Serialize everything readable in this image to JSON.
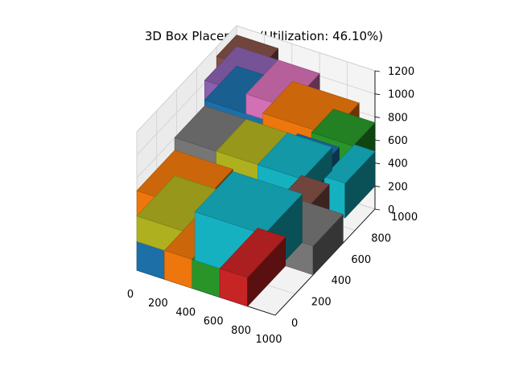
{
  "chart_data": {
    "type": "3d-bar",
    "title": "3D Box Placement (Utilization: 46.10%)",
    "xlabel": "",
    "ylabel": "",
    "zlabel": "",
    "xlim": [
      0,
      1000
    ],
    "ylim": [
      0,
      1000
    ],
    "zlim": [
      0,
      1200
    ],
    "x_ticks": [
      "0",
      "200",
      "400",
      "600",
      "800",
      "1000"
    ],
    "y_ticks": [
      "0",
      "200",
      "400",
      "600",
      "800",
      "1000"
    ],
    "z_ticks": [
      "0",
      "200",
      "400",
      "600",
      "800",
      "1000",
      "1200"
    ],
    "grid": true,
    "boxes": [
      {
        "x": 0,
        "y": 0,
        "z": 0,
        "dx": 200,
        "dy": 380,
        "dz": 250,
        "color": "#1f77b4"
      },
      {
        "x": 200,
        "y": 0,
        "z": 0,
        "dx": 200,
        "dy": 380,
        "dz": 250,
        "color": "#ff7f0e"
      },
      {
        "x": 400,
        "y": 0,
        "z": 0,
        "dx": 200,
        "dy": 380,
        "dz": 250,
        "color": "#2ca02c"
      },
      {
        "x": 600,
        "y": 0,
        "z": 0,
        "dx": 200,
        "dy": 380,
        "dz": 250,
        "color": "#d62728"
      },
      {
        "x": 0,
        "y": 0,
        "z": 250,
        "dx": 420,
        "dy": 380,
        "dz": 220,
        "color": "#bcbd22"
      },
      {
        "x": 0,
        "y": 0,
        "z": 470,
        "dx": 420,
        "dy": 380,
        "dz": 220,
        "color": "#ff7f0e"
      },
      {
        "x": 420,
        "y": 0,
        "z": 250,
        "dx": 500,
        "dy": 380,
        "dz": 420,
        "color": "#17becf"
      },
      {
        "x": 0,
        "y": 380,
        "z": 600,
        "dx": 300,
        "dy": 300,
        "dz": 200,
        "color": "#7f7f7f"
      },
      {
        "x": 300,
        "y": 380,
        "z": 600,
        "dx": 300,
        "dy": 300,
        "dz": 200,
        "color": "#bcbd22"
      },
      {
        "x": 600,
        "y": 380,
        "z": 600,
        "dx": 320,
        "dy": 300,
        "dz": 200,
        "color": "#17becf"
      },
      {
        "x": 0,
        "y": 680,
        "z": 650,
        "dx": 420,
        "dy": 320,
        "dz": 200,
        "color": "#1f77b4"
      },
      {
        "x": 0,
        "y": 680,
        "z": 850,
        "dx": 300,
        "dy": 320,
        "dz": 170,
        "color": "#9467bd"
      },
      {
        "x": 300,
        "y": 680,
        "z": 850,
        "dx": 300,
        "dy": 320,
        "dz": 170,
        "color": "#e377c2"
      },
      {
        "x": 0,
        "y": 800,
        "z": 1020,
        "dx": 300,
        "dy": 200,
        "dz": 100,
        "color": "#8c564b"
      },
      {
        "x": 420,
        "y": 680,
        "z": 700,
        "dx": 480,
        "dy": 300,
        "dz": 200,
        "color": "#ff7f0e"
      },
      {
        "x": 600,
        "y": 560,
        "z": 450,
        "dx": 300,
        "dy": 220,
        "dz": 250,
        "color": "#1f77b4"
      },
      {
        "x": 850,
        "y": 700,
        "z": 200,
        "dx": 150,
        "dy": 300,
        "dz": 300,
        "color": "#17becf"
      },
      {
        "x": 700,
        "y": 780,
        "z": 450,
        "dx": 300,
        "dy": 220,
        "dz": 300,
        "color": "#2ca02c"
      },
      {
        "x": 700,
        "y": 380,
        "z": 0,
        "dx": 300,
        "dy": 300,
        "dz": 250,
        "color": "#7f7f7f"
      },
      {
        "x": 700,
        "y": 380,
        "z": 250,
        "dx": 200,
        "dy": 300,
        "dz": 220,
        "color": "#8c564b"
      }
    ]
  }
}
